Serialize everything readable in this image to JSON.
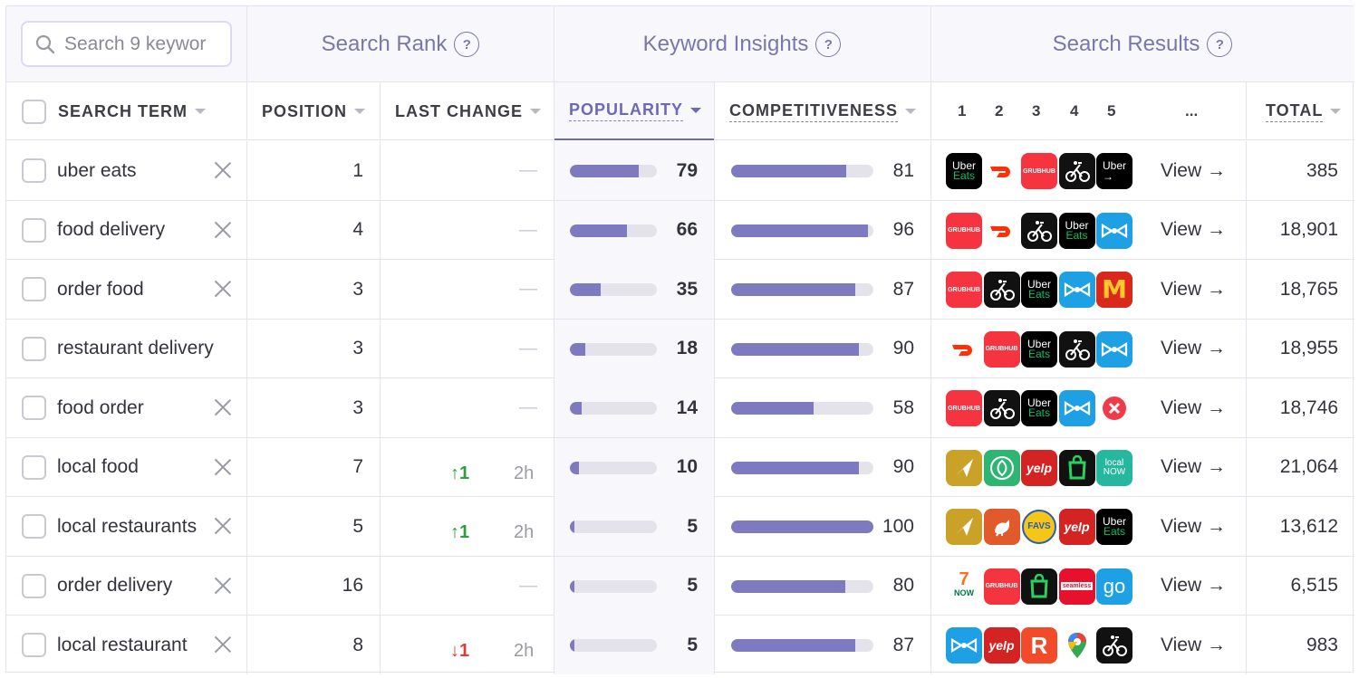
{
  "search": {
    "placeholder": "Search 9 keywor"
  },
  "groups": {
    "search_rank": "Search Rank",
    "keyword_insights": "Keyword Insights",
    "search_results": "Search Results",
    "help": "?"
  },
  "columns": {
    "search_term": "SEARCH TERM",
    "position": "POSITION",
    "last_change": "LAST CHANGE",
    "popularity": "POPULARITY",
    "competitiveness": "COMPETITIVENESS",
    "rank_numbers": [
      "1",
      "2",
      "3",
      "4",
      "5"
    ],
    "more": "...",
    "total": "TOTAL"
  },
  "colors": {
    "accent": "#6c69b6",
    "bar": "#7d7abf",
    "up": "#2e9e3f",
    "down": "#e03a3a"
  },
  "rows": [
    {
      "term": "uber eats",
      "removable": true,
      "position": "1",
      "change": null,
      "change_dir": null,
      "change_time": null,
      "popularity": 79,
      "competitiveness": 81,
      "view": "View →",
      "total": "385",
      "apps": [
        "uber-eats",
        "doordash",
        "grubhub",
        "postmates",
        "uber"
      ]
    },
    {
      "term": "food delivery",
      "removable": true,
      "position": "4",
      "change": null,
      "change_dir": null,
      "change_time": null,
      "popularity": 66,
      "competitiveness": 96,
      "view": "View →",
      "total": "18,901",
      "apps": [
        "grubhub",
        "doordash",
        "postmates",
        "uber-eats",
        "waiter"
      ]
    },
    {
      "term": "order food",
      "removable": true,
      "position": "3",
      "change": null,
      "change_dir": null,
      "change_time": null,
      "popularity": 35,
      "competitiveness": 87,
      "view": "View →",
      "total": "18,765",
      "apps": [
        "grubhub",
        "postmates",
        "uber-eats",
        "waiter",
        "mcdonalds"
      ]
    },
    {
      "term": "restaurant delivery",
      "removable": false,
      "position": "3",
      "change": null,
      "change_dir": null,
      "change_time": null,
      "popularity": 18,
      "competitiveness": 90,
      "view": "View →",
      "total": "18,955",
      "apps": [
        "doordash",
        "grubhub",
        "uber-eats",
        "postmates",
        "waiter"
      ]
    },
    {
      "term": "food order",
      "removable": true,
      "position": "3",
      "change": null,
      "change_dir": null,
      "change_time": null,
      "popularity": 14,
      "competitiveness": 58,
      "view": "View →",
      "total": "18,746",
      "apps": [
        "grubhub",
        "postmates",
        "uber-eats",
        "waiter",
        "foodpanda"
      ]
    },
    {
      "term": "local food",
      "removable": true,
      "position": "7",
      "change": "1",
      "change_dir": "up",
      "change_time": "2h",
      "popularity": 10,
      "competitiveness": 90,
      "view": "View →",
      "total": "21,064",
      "apps": [
        "paper-plane",
        "green-leaf",
        "yelp",
        "green-bag",
        "local-now"
      ]
    },
    {
      "term": "local restaurants",
      "removable": true,
      "position": "5",
      "change": "1",
      "change_dir": "up",
      "change_time": "2h",
      "popularity": 5,
      "competitiveness": 100,
      "view": "View →",
      "total": "13,612",
      "apps": [
        "paper-plane",
        "rooster",
        "favs",
        "yelp",
        "uber-eats"
      ]
    },
    {
      "term": "order delivery",
      "removable": true,
      "position": "16",
      "change": null,
      "change_dir": null,
      "change_time": null,
      "popularity": 5,
      "competitiveness": 80,
      "view": "View →",
      "total": "6,515",
      "apps": [
        "seven-now",
        "grubhub",
        "green-bag",
        "seamless",
        "go"
      ]
    },
    {
      "term": "local restaurant",
      "removable": true,
      "position": "8",
      "change": "1",
      "change_dir": "down",
      "change_time": "2h",
      "popularity": 5,
      "competitiveness": 87,
      "view": "View →",
      "total": "983",
      "apps": [
        "waiter",
        "yelp",
        "r-app",
        "google-maps",
        "postmates"
      ]
    }
  ],
  "app_labels": {
    "uber-eats": "Uber Eats",
    "uber": "Uber",
    "grubhub": "GRUBHUB",
    "yelp": "yelp",
    "seamless": "seamless",
    "go": "go",
    "local-now": "local NOW",
    "favs": "FAVS",
    "r-app": "R",
    "seven-now": "7 NOW"
  }
}
